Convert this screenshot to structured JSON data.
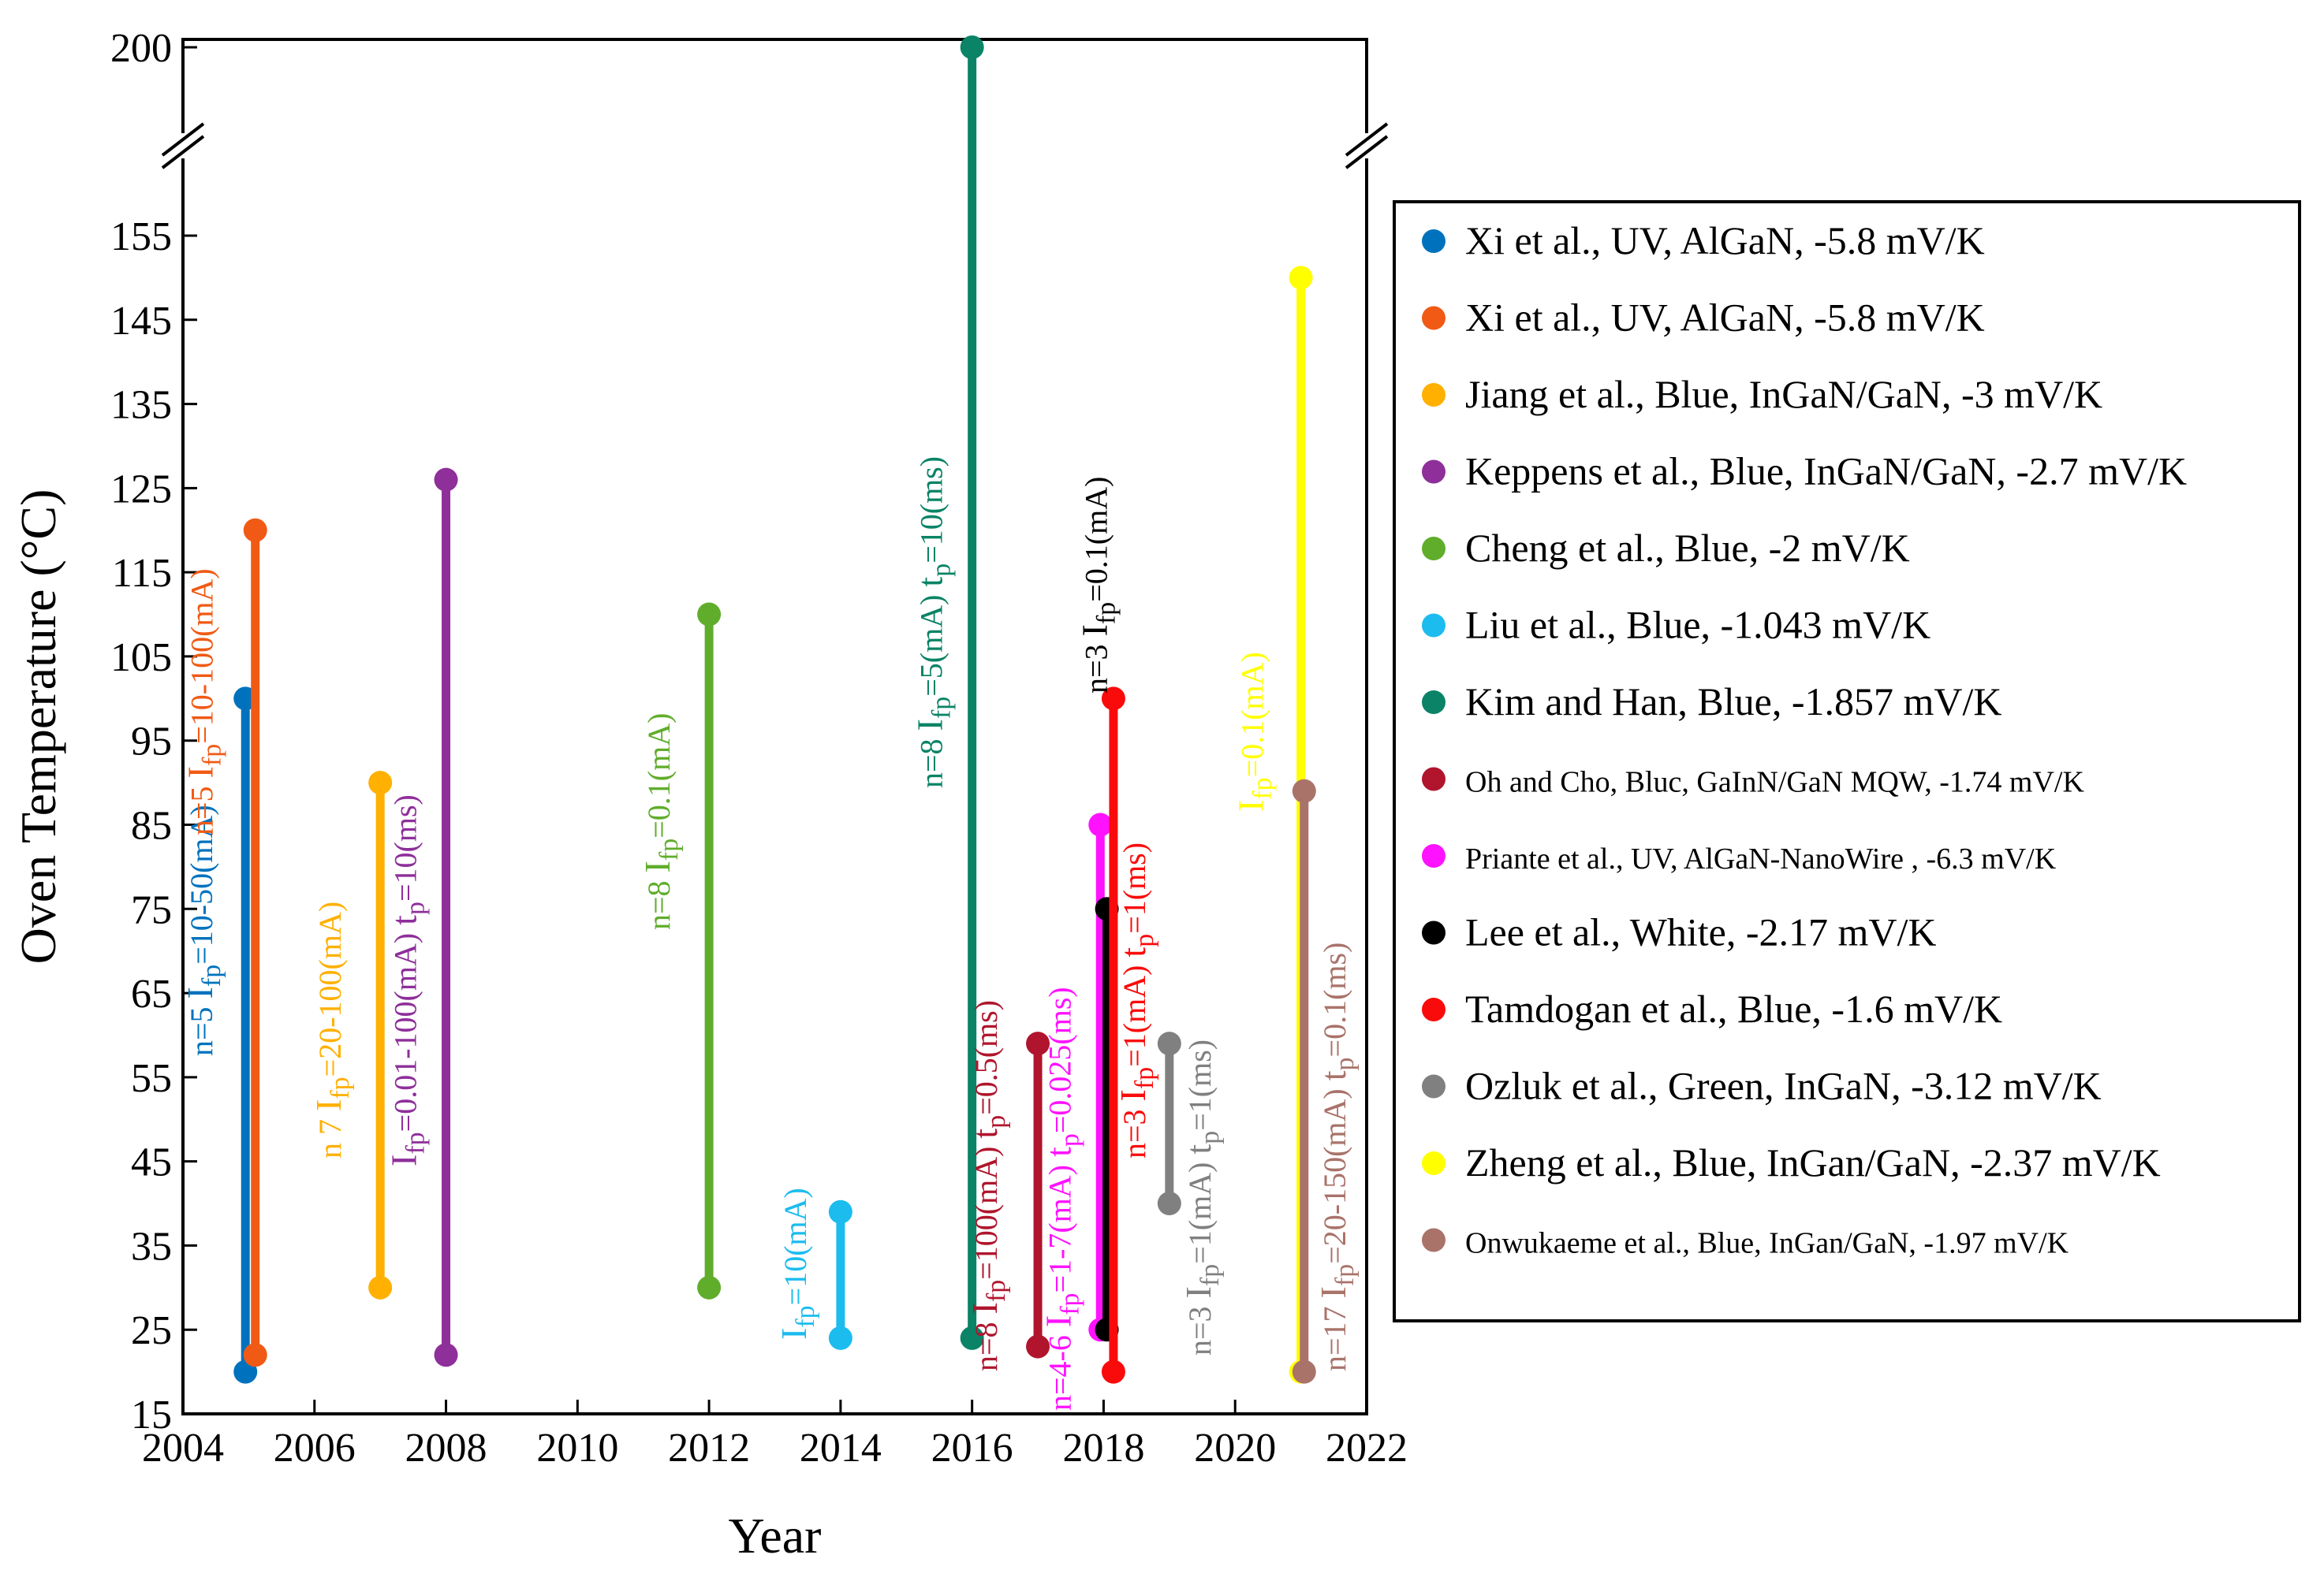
{
  "chart_data": {
    "type": "range",
    "title": "",
    "xlabel": "Year",
    "ylabel": "Oven Temperature (°C)",
    "xlim": [
      2004,
      2022
    ],
    "ylim": [
      15,
      165
    ],
    "axis_break": {
      "top_label": "200"
    },
    "x_ticks": [
      "2004",
      "2006",
      "2008",
      "2010",
      "2012",
      "2014",
      "2016",
      "2018",
      "2020",
      "2022"
    ],
    "y_ticks": [
      "15",
      "25",
      "35",
      "45",
      "55",
      "65",
      "75",
      "85",
      "95",
      "105",
      "115",
      "125",
      "135",
      "145",
      "155"
    ],
    "legend_position": "right",
    "series": [
      {
        "name": "Xi et al., UV, AlGaN, -5.8 mV/K",
        "color": "#0072bd",
        "x": 2004.95,
        "low": 20,
        "high": 100,
        "note": "n=5  I_fp=10-50(mA)",
        "note_parts": [
          "n=5",
          "I",
          "fp",
          "=10-50(mA)"
        ]
      },
      {
        "name": "Xi et al., UV, AlGaN, -5.8 mV/K",
        "color": "#f05a14",
        "x": 2005.1,
        "low": 22,
        "high": 120,
        "note": "n=5  I_fp=10-100(mA)",
        "note_parts": [
          "n=5",
          "I",
          "fp",
          "=10-100(mA)"
        ]
      },
      {
        "name": "Jiang et al., Blue, InGaN/GaN, -3 mV/K",
        "color": "#ffb000",
        "x": 2007,
        "low": 30,
        "high": 90,
        "note": "n 7  I_fp=20-100(mA)",
        "note_parts": [
          "n 7",
          "I",
          "fp",
          "=20-100(mA)"
        ]
      },
      {
        "name": "Keppens et al., Blue, InGaN/GaN, -2.7 mV/K",
        "color": "#8e2f9a",
        "x": 2008,
        "low": 22,
        "high": 126,
        "note": "I_fp=0.01-100(mA)  t_p=10(ms)",
        "note_parts": [
          "I",
          "fp",
          "=0.01-100(mA)",
          "t",
          "p",
          "=10(ms)"
        ]
      },
      {
        "name": "Cheng et al., Blue, -2 mV/K",
        "color": "#60ad2c",
        "x": 2012,
        "low": 30,
        "high": 110,
        "note": "n=8  I_fp=0.1(mA)",
        "note_parts": [
          "n=8",
          "I",
          "fp",
          "=0.1(mA)"
        ]
      },
      {
        "name": "Liu et al., Blue, -1.043 mV/K",
        "color": "#1cbcef",
        "x": 2014,
        "low": 24,
        "high": 39,
        "note": "I_fp=10(mA)",
        "note_parts": [
          "I",
          "fp",
          "=10(mA)"
        ]
      },
      {
        "name": "Kim and Han, Blue, -1.857 mV/K",
        "color": "#0a8366",
        "x": 2016,
        "low": 24,
        "high": 200,
        "note": "n=8  I_fp=5(mA)  t_p=10(ms)",
        "note_parts": [
          "n=8",
          "I",
          "fp",
          "=5(mA)",
          "t",
          "p",
          "=10(ms)"
        ]
      },
      {
        "name": "Oh and Cho, Bluc, GaInN/GaN MQW, -1.74 mV/K",
        "color": "#b0152d",
        "x": 2017,
        "low": 23,
        "high": 59,
        "note": "n=8  I_fp=100(mA)  t_p=0.5(ms)",
        "note_parts": [
          "n=8",
          "I",
          "fp",
          "=100(mA)",
          "t",
          "p",
          "=0.5(ms)"
        ]
      },
      {
        "name": "Priante et al., UV, AlGaN-NanoWire , -6.3 mV/K",
        "color": "#ff12ff",
        "x": 2017.95,
        "low": 25,
        "high": 85,
        "note": "n=4-6  I_fp=1-7(mA)  t_p=0.025(ms)",
        "note_parts": [
          "n=4-6",
          "I",
          "fp",
          "=1-7(mA)",
          "t",
          "p",
          "=0.025(ms)"
        ]
      },
      {
        "name": "Lee et al., White, -2.17 mV/K",
        "color": "#000000",
        "x": 2018.05,
        "low": 25,
        "high": 75,
        "note": "n=3  I_fp=0.1(mA)",
        "note_parts": [
          "n=3",
          "I",
          "fp",
          "=0.1(mA)"
        ]
      },
      {
        "name": "Tamdogan et al., Blue, -1.6 mV/K",
        "color": "#fa0b0b",
        "x": 2018.15,
        "low": 20,
        "high": 100,
        "note": "n=3  I_fp=1(mA)  t_p=1(ms)",
        "note_parts": [
          "n=3",
          "I",
          "fp",
          "=1(mA)",
          "t",
          "p",
          "=1(ms)"
        ]
      },
      {
        "name": "Ozluk et al., Green, InGaN, -3.12 mV/K",
        "color": "#808080",
        "x": 2019,
        "low": 40,
        "high": 59,
        "note": "n=3  I_fp=1(mA)  t_p=1(ms)",
        "note_parts": [
          "n=3",
          "I",
          "fp",
          "=1(mA)",
          "t",
          "p",
          "=1(ms)"
        ]
      },
      {
        "name": "Zheng et al., Blue, InGan/GaN, -2.37 mV/K",
        "color": "#ffff00",
        "x": 2021,
        "low": 20,
        "high": 150,
        "note": "I_fp=0.1(mA)",
        "note_parts": [
          "I",
          "fp",
          "=0.1(mA)"
        ]
      },
      {
        "name": "Onwukaeme et al., Blue, InGan/GaN, -1.97 mV/K",
        "color": "#a9736a",
        "x": 2021.05,
        "low": 20,
        "high": 89,
        "note": "n=17  I_fp=20-150(mA)  t_p=0.1(ms)",
        "note_parts": [
          "n=17",
          "I",
          "fp",
          "=20-150(mA)",
          "t",
          "p",
          "=0.1(ms)"
        ]
      }
    ]
  }
}
